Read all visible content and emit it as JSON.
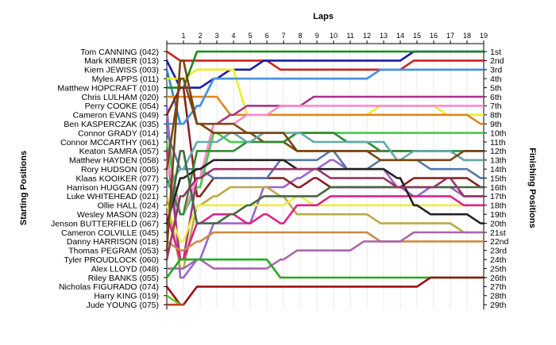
{
  "chart_data": {
    "type": "line",
    "xlabel": "Laps",
    "ylabel_left": "Starting Positions",
    "ylabel_right": "Finishing Positions",
    "laps": [
      1,
      2,
      3,
      4,
      5,
      6,
      7,
      8,
      9,
      10,
      11,
      12,
      13,
      14,
      15,
      16,
      17,
      18,
      19
    ],
    "drivers": [
      "Tom CANNING (042)",
      "Mark KIMBER (013)",
      "Kiern JEWISS (003)",
      "Myles APPS (011)",
      "Matthew HOPCRAFT (010)",
      "Chris LULHAM (020)",
      "Perry COOKE (054)",
      "Cameron EVANS (049)",
      "Ben KASPERCZAK (035)",
      "Connor GRADY (014)",
      "Connor MCCARTHY (061)",
      "Keaton SAMRA (057)",
      "Matthew HAYDEN (058)",
      "Rory HUDSON (005)",
      "Klaas KOOIKER (077)",
      "Harrison HUGGAN (097)",
      "Luke WHITEHEAD (021)",
      "Ollie HALL (024)",
      "Wesley MASON (023)",
      "Jenson BUTTERFIELD (067)",
      "Cameron COLVILLE (045)",
      "Danny HARRISON (018)",
      "Thomas PEGRAM (053)",
      "Tyler PROUDLOCK (060)",
      "Alex LLOYD (048)",
      "Riley BANKS (055)",
      "Nicholas FIGURADO (074)",
      "Harry KING (019)",
      "Jude YOUNG (075)"
    ],
    "finishing_labels": [
      "1st",
      "2nd",
      "3rd",
      "4th",
      "5th",
      "6th",
      "7th",
      "8th",
      "9th",
      "10th",
      "11th",
      "12th",
      "13th",
      "14th",
      "15th",
      "16th",
      "17th",
      "18th",
      "19th",
      "20th",
      "21st",
      "22nd",
      "23rd",
      "24th",
      "25th",
      "26th",
      "27th",
      "28th",
      "29th"
    ],
    "series": [
      {
        "color": "#cc2222",
        "positions": [
          1,
          2,
          2,
          2,
          2,
          2,
          2,
          3,
          3,
          3,
          3,
          3,
          3,
          3,
          3,
          2,
          2,
          2,
          2,
          2
        ]
      },
      {
        "color": "#1a1aaa",
        "positions": [
          2,
          5,
          5,
          4,
          3,
          3,
          2,
          2,
          2,
          2,
          2,
          2,
          2,
          2,
          2,
          1,
          1,
          1,
          1,
          1
        ]
      },
      {
        "color": "#2288dd",
        "positions": [
          3,
          9,
          7,
          4,
          4,
          4,
          4,
          4,
          4,
          4,
          4,
          4,
          4,
          3,
          3,
          3,
          3,
          3,
          3,
          3
        ]
      },
      {
        "color": "#eeee22",
        "positions": [
          4,
          4,
          3,
          3,
          3,
          8,
          8,
          8,
          8,
          8,
          8,
          8,
          8,
          7,
          7,
          7,
          7,
          8,
          8,
          8
        ]
      },
      {
        "color": "#1a8a1a",
        "positions": [
          5,
          5,
          1,
          1,
          1,
          1,
          1,
          1,
          1,
          1,
          1,
          1,
          1,
          1,
          1,
          1,
          1,
          1,
          1,
          1
        ]
      },
      {
        "color": "#dd8822",
        "positions": [
          6,
          6,
          6,
          6,
          8,
          8,
          8,
          8,
          8,
          8,
          8,
          8,
          8,
          8,
          8,
          8,
          8,
          8,
          8,
          9
        ]
      },
      {
        "color": "#9966cc",
        "positions": [
          7,
          26,
          24,
          20,
          20,
          20,
          16,
          16,
          15,
          14,
          13,
          14,
          14,
          14,
          16,
          17,
          16,
          16,
          17,
          17
        ]
      },
      {
        "color": "#882222",
        "positions": [
          8,
          5,
          17,
          15,
          15,
          15,
          15,
          15,
          16,
          15,
          16,
          16,
          16,
          16,
          16,
          15,
          15,
          15,
          15,
          16
        ]
      },
      {
        "color": "#4a90e2",
        "positions": [
          9,
          9,
          7,
          4,
          4,
          4,
          4,
          4,
          4,
          4,
          4,
          4,
          4,
          3,
          3,
          3,
          3,
          3,
          3,
          3
        ]
      },
      {
        "color": "#5577aa",
        "positions": [
          10,
          14,
          14,
          15,
          15,
          15,
          15,
          13,
          13,
          13,
          12,
          14,
          14,
          13,
          13,
          13,
          14,
          14,
          14,
          15
        ]
      },
      {
        "color": "#44cc44",
        "positions": [
          11,
          19,
          16,
          10,
          11,
          11,
          11,
          11,
          10,
          10,
          10,
          10,
          10,
          10,
          10,
          10,
          10,
          10,
          10,
          10
        ]
      },
      {
        "color": "#aa3388",
        "positions": [
          12,
          24,
          15,
          9,
          8,
          7,
          7,
          7,
          7,
          6,
          6,
          6,
          6,
          6,
          6,
          6,
          6,
          6,
          6,
          6
        ]
      },
      {
        "color": "#ff88cc",
        "positions": [
          13,
          19,
          15,
          9,
          9,
          8,
          8,
          7,
          7,
          7,
          7,
          7,
          7,
          7,
          7,
          7,
          7,
          7,
          7,
          7
        ]
      },
      {
        "color": "#7a4a1a",
        "positions": [
          14,
          4,
          9,
          9,
          9,
          10,
          11,
          11,
          12,
          12,
          12,
          12,
          12,
          12,
          12,
          12,
          12,
          12,
          13,
          13
        ]
      },
      {
        "color": "#338833",
        "positions": [
          15,
          19,
          12,
          12,
          12,
          11,
          11,
          11,
          10,
          10,
          10,
          11,
          11,
          12,
          12,
          12,
          12,
          12,
          12,
          12
        ]
      },
      {
        "color": "#66aaaa",
        "positions": [
          16,
          14,
          11,
          11,
          10,
          11,
          10,
          10,
          10,
          11,
          11,
          11,
          11,
          11,
          13,
          12,
          12,
          12,
          13,
          13
        ]
      },
      {
        "color": "#bbaa44",
        "positions": [
          17,
          25,
          18,
          17,
          16,
          16,
          16,
          17,
          19,
          19,
          19,
          19,
          19,
          20,
          20,
          20,
          20,
          20,
          21,
          21
        ]
      },
      {
        "color": "#eeee44",
        "positions": [
          18,
          22,
          18,
          18,
          18,
          18,
          18,
          18,
          17,
          18,
          18,
          18,
          18,
          18,
          18,
          18,
          18,
          18,
          18,
          18
        ]
      },
      {
        "color": "#dd2288",
        "positions": [
          19,
          24,
          20,
          19,
          19,
          20,
          19,
          20,
          18,
          18,
          17,
          17,
          17,
          17,
          17,
          17,
          17,
          17,
          18,
          18
        ]
      },
      {
        "color": "#222222",
        "positions": [
          20,
          15,
          14,
          13,
          13,
          13,
          13,
          13,
          14,
          14,
          14,
          14,
          14,
          14,
          15,
          18,
          19,
          19,
          19,
          20
        ]
      },
      {
        "color": "#446644",
        "positions": [
          21,
          12,
          20,
          20,
          19,
          18,
          17,
          17,
          17,
          17,
          16,
          16,
          16,
          16,
          16,
          16,
          16,
          16,
          16,
          16
        ]
      },
      {
        "color": "#cc8844",
        "positions": [
          22,
          23,
          22,
          21,
          21,
          21,
          21,
          21,
          21,
          21,
          21,
          21,
          21,
          22,
          22,
          22,
          22,
          22,
          22,
          22
        ]
      },
      {
        "color": "#774411",
        "positions": [
          23,
          2,
          9,
          10,
          10,
          10,
          10,
          10,
          12,
          12,
          12,
          12,
          12,
          13,
          13,
          13,
          13,
          13,
          12,
          12
        ]
      },
      {
        "color": "#993366",
        "positions": [
          24,
          17,
          15,
          14,
          14,
          14,
          14,
          14,
          14,
          14,
          15,
          15,
          15,
          15,
          16,
          16,
          16,
          15,
          17,
          17
        ]
      },
      {
        "color": "#aa66aa",
        "positions": [
          25,
          25,
          24,
          25,
          25,
          25,
          25,
          24,
          23,
          23,
          23,
          23,
          22,
          22,
          22,
          21,
          21,
          21,
          21,
          21
        ]
      },
      {
        "color": "#22aa22",
        "positions": [
          26,
          24,
          24,
          24,
          24,
          24,
          24,
          26,
          26,
          26,
          26,
          26,
          26,
          26,
          26,
          26,
          26,
          26,
          26,
          26
        ]
      },
      {
        "color": "#991111",
        "positions": [
          27,
          29,
          27,
          27,
          27,
          27,
          27,
          27,
          27,
          27,
          27,
          27,
          27,
          27,
          27,
          27,
          26,
          26,
          26,
          26
        ]
      },
      {
        "color": "#66cc22",
        "positions": [
          28,
          29
        ]
      },
      {
        "color": "#bb4422",
        "positions": [
          29,
          29
        ]
      }
    ]
  }
}
